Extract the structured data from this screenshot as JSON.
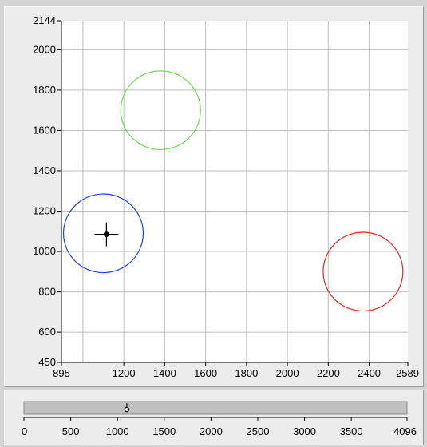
{
  "chart_data": {
    "type": "scatter",
    "xlim": [
      895,
      2589
    ],
    "ylim": [
      450,
      2144
    ],
    "x_ticks": [
      "895",
      "1200",
      "1400",
      "1600",
      "1800",
      "2000",
      "2200",
      "2400",
      "2589"
    ],
    "y_ticks": [
      "2144",
      "2000",
      "1800",
      "1600",
      "1400",
      "1200",
      "1000",
      "800",
      "600",
      "450"
    ],
    "grid": true,
    "circles": [
      {
        "name": "green-circle",
        "cx": 1380,
        "cy": 1700,
        "r": 195,
        "color": "#66e04a"
      },
      {
        "name": "blue-circle",
        "cx": 1100,
        "cy": 1090,
        "r": 195,
        "color": "#1e3cf0"
      },
      {
        "name": "red-circle",
        "cx": 2370,
        "cy": 900,
        "r": 195,
        "color": "#f02020"
      }
    ],
    "marker": {
      "x": 1115,
      "y": 1085,
      "color": "#000000"
    }
  },
  "slider": {
    "min": 0,
    "max": 4096,
    "value": 1100,
    "ticks": [
      "0",
      "500",
      "1000",
      "1500",
      "2000",
      "2500",
      "3000",
      "3500",
      "4096"
    ]
  }
}
